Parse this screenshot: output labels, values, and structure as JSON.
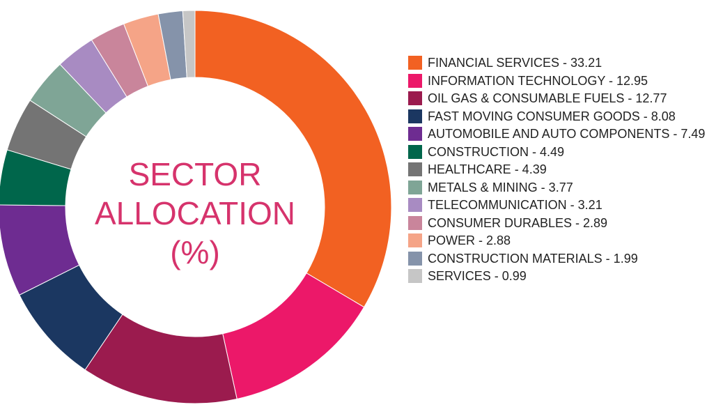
{
  "chart_data": {
    "type": "donut",
    "title": "SECTOR ALLOCATION (%)",
    "categories": [
      "FINANCIAL SERVICES - 33.21",
      "INFORMATION TECHNOLOGY - 12.95",
      "OIL GAS & CONSUMABLE FUELS - 12.77",
      "FAST MOVING CONSUMER GOODS - 8.08",
      "AUTOMOBILE AND AUTO COMPONENTS - 7.49",
      "CONSTRUCTION - 4.49",
      "HEALTHCARE - 4.39",
      "METALS & MINING - 3.77",
      "TELECOMMUNICATION - 3.21",
      "CONSUMER DURABLES - 2.89",
      "POWER - 2.88",
      "CONSTRUCTION MATERIALS - 1.99",
      "SERVICES - 0.99"
    ],
    "values": [
      33.21,
      12.95,
      12.77,
      8.08,
      7.49,
      4.49,
      4.39,
      3.77,
      3.21,
      2.89,
      2.88,
      1.99,
      0.99
    ],
    "colors": [
      "#f26122",
      "#ec1869",
      "#9b1b4e",
      "#1b3761",
      "#6e2c91",
      "#00664b",
      "#747474",
      "#7fa596",
      "#a88bc2",
      "#c9859b",
      "#f5a487",
      "#8593aa",
      "#c6c6c6"
    ],
    "legend": "right"
  }
}
